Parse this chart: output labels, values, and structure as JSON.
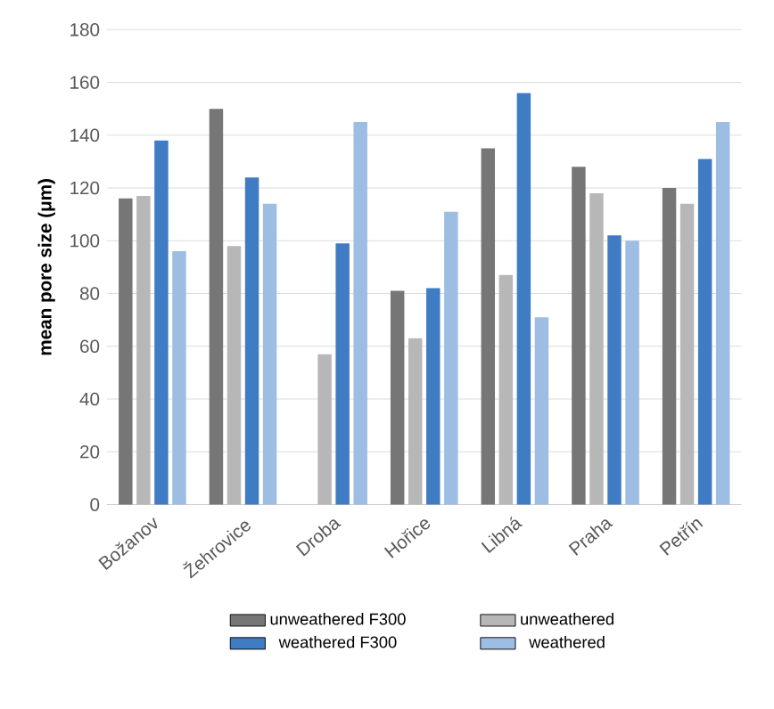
{
  "chart_data": {
    "type": "bar",
    "ylabel": "mean pore size (μm)",
    "categories": [
      "Božanov",
      "Žehrovice",
      "Droba",
      "Hořice",
      "Libná",
      "Praha",
      "Petřín"
    ],
    "series": [
      {
        "name": "unweathered F300",
        "color": "#767676",
        "values": [
          116,
          150,
          null,
          81,
          135,
          128,
          120
        ]
      },
      {
        "name": "unweathered",
        "color": "#b7b7b7",
        "values": [
          117,
          98,
          57,
          63,
          87,
          118,
          114
        ]
      },
      {
        "name": "weathered F300",
        "color": "#3f7cc4",
        "values": [
          138,
          124,
          99,
          82,
          156,
          102,
          131
        ]
      },
      {
        "name": "weathered",
        "color": "#9dbde3",
        "values": [
          96,
          114,
          145,
          111,
          71,
          100,
          145
        ]
      }
    ],
    "ylim": [
      0,
      180
    ],
    "yticks": [
      0,
      20,
      40,
      60,
      80,
      100,
      120,
      140,
      160,
      180
    ],
    "grid": "y",
    "legend": "bottom"
  }
}
